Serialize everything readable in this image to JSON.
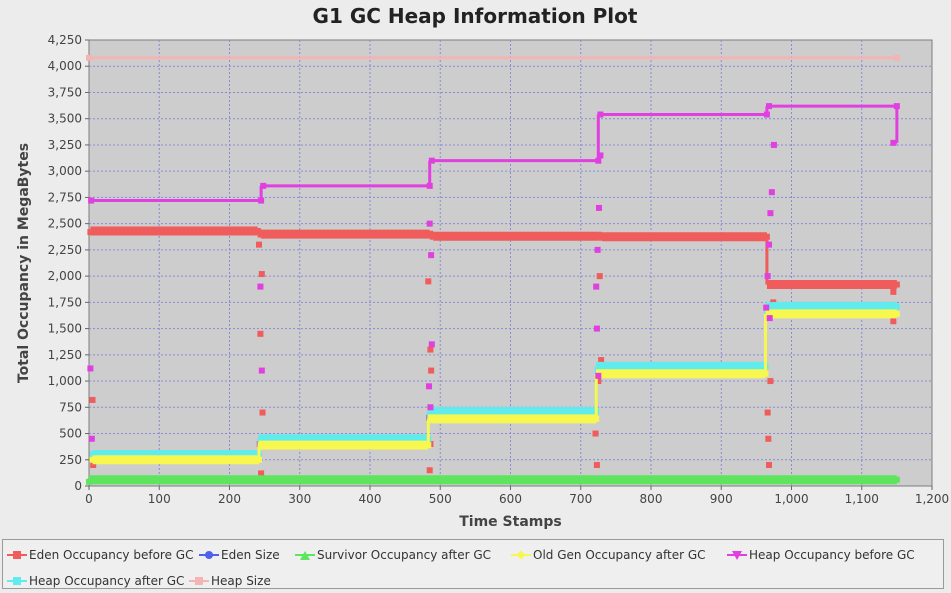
{
  "chart_data": {
    "type": "line",
    "title": "G1 GC Heap Information Plot",
    "xlabel": "Time Stamps",
    "ylabel": "Total Occupancy in MegaBytes",
    "xlim": [
      0,
      1200
    ],
    "ylim": [
      0,
      4250
    ],
    "x_ticks": [
      "0",
      "100",
      "200",
      "300",
      "400",
      "500",
      "600",
      "700",
      "800",
      "900",
      "1,000",
      "1,100",
      "1,200"
    ],
    "y_ticks": [
      "0",
      "250",
      "500",
      "750",
      "1,000",
      "1,250",
      "1,500",
      "1,750",
      "2,000",
      "2,250",
      "2,500",
      "2,750",
      "3,000",
      "3,250",
      "3,500",
      "3,750",
      "4,000",
      "4,250"
    ],
    "grid": true,
    "legend_position": "bottom",
    "series": [
      {
        "name": "Eden Occupancy before GC",
        "color": "#f05c5c",
        "marker": "square",
        "points": [
          [
            2,
            2420
          ],
          [
            240,
            2430
          ],
          [
            245,
            2410
          ],
          [
            485,
            2400
          ],
          [
            490,
            2390
          ],
          [
            725,
            2380
          ],
          [
            730,
            2380
          ],
          [
            965,
            2375
          ],
          [
            975,
            1920
          ],
          [
            1150,
            1920
          ]
        ],
        "scatter": [
          [
            5,
            820
          ],
          [
            6,
            200
          ],
          [
            242,
            2300
          ],
          [
            244,
            1450
          ],
          [
            246,
            2020
          ],
          [
            247,
            700
          ],
          [
            243,
            400
          ],
          [
            245,
            120
          ],
          [
            245,
            60
          ],
          [
            483,
            1950
          ],
          [
            486,
            1300
          ],
          [
            487,
            1100
          ],
          [
            484,
            650
          ],
          [
            486,
            400
          ],
          [
            485,
            150
          ],
          [
            721,
            500
          ],
          [
            723,
            200
          ],
          [
            725,
            1000
          ],
          [
            727,
            2000
          ],
          [
            729,
            1200
          ],
          [
            966,
            700
          ],
          [
            967,
            450
          ],
          [
            968,
            200
          ],
          [
            970,
            1000
          ],
          [
            974,
            1750
          ],
          [
            1145,
            1570
          ],
          [
            1145,
            1850
          ]
        ]
      },
      {
        "name": "Eden Size",
        "color": "#5060ee",
        "marker": "circle",
        "points": []
      },
      {
        "name": "Survivor Occupancy after GC",
        "color": "#5ee55e",
        "marker": "triangle",
        "points": [
          [
            0,
            40
          ],
          [
            1150,
            60
          ]
        ]
      },
      {
        "name": "Old Gen Occupancy after GC",
        "color": "#f7f74f",
        "marker": "diamond",
        "points": [
          [
            5,
            250
          ],
          [
            242,
            250
          ],
          [
            245,
            390
          ],
          [
            483,
            390
          ],
          [
            487,
            640
          ],
          [
            722,
            640
          ],
          [
            726,
            1070
          ],
          [
            963,
            1070
          ],
          [
            972,
            1640
          ],
          [
            1150,
            1640
          ]
        ]
      },
      {
        "name": "Heap Occupancy before GC",
        "color": "#e040e0",
        "marker": "triangle-down",
        "points": [
          [
            3,
            2720
          ],
          [
            245,
            2720
          ],
          [
            248,
            2860
          ],
          [
            485,
            2860
          ],
          [
            488,
            3100
          ],
          [
            725,
            3100
          ],
          [
            728,
            3540
          ],
          [
            965,
            3540
          ],
          [
            968,
            3620
          ],
          [
            1150,
            3620
          ],
          [
            1145,
            3270
          ]
        ],
        "scatter": [
          [
            2,
            1120
          ],
          [
            4,
            450
          ],
          [
            244,
            1900
          ],
          [
            246,
            1100
          ],
          [
            485,
            2500
          ],
          [
            487,
            2200
          ],
          [
            488,
            1350
          ],
          [
            484,
            950
          ],
          [
            486,
            750
          ],
          [
            722,
            1900
          ],
          [
            724,
            2250
          ],
          [
            726,
            2650
          ],
          [
            728,
            3150
          ],
          [
            723,
            1500
          ],
          [
            725,
            1050
          ],
          [
            964,
            1700
          ],
          [
            966,
            2000
          ],
          [
            968,
            2300
          ],
          [
            970,
            2600
          ],
          [
            972,
            2800
          ],
          [
            975,
            3250
          ],
          [
            969,
            1600
          ]
        ]
      },
      {
        "name": "Heap Occupancy after GC",
        "color": "#60ecec",
        "marker": "square",
        "points": [
          [
            5,
            300
          ],
          [
            242,
            300
          ],
          [
            245,
            450
          ],
          [
            483,
            450
          ],
          [
            487,
            710
          ],
          [
            722,
            710
          ],
          [
            726,
            1140
          ],
          [
            963,
            1140
          ],
          [
            972,
            1710
          ],
          [
            1150,
            1710
          ]
        ]
      },
      {
        "name": "Heap Size",
        "color": "#f4b4b4",
        "marker": "square",
        "points": [
          [
            0,
            4080
          ],
          [
            1150,
            4080
          ]
        ]
      }
    ]
  }
}
